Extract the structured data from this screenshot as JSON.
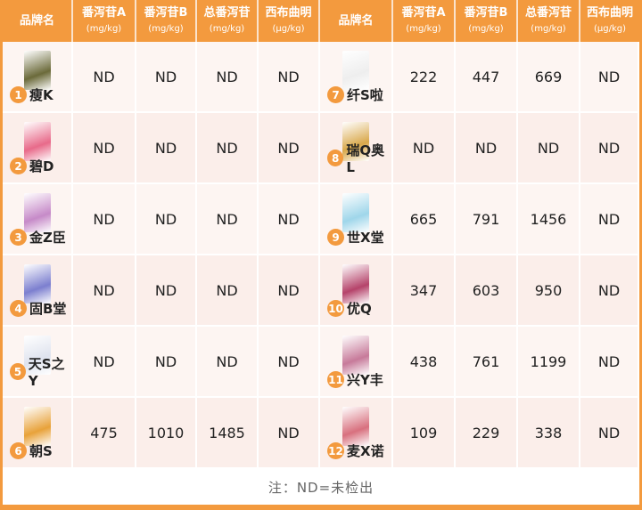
{
  "header": {
    "brand": "品牌名",
    "cols": [
      {
        "name": "番泻苷A",
        "unit": "(mg/kg)"
      },
      {
        "name": "番泻苷B",
        "unit": "(mg/kg)"
      },
      {
        "name": "总番泻苷",
        "unit": "(mg/kg)"
      },
      {
        "name": "西布曲明",
        "unit": "(μg/kg)"
      }
    ]
  },
  "rows": [
    {
      "left": {
        "no": "1",
        "name": "瘦K",
        "v": [
          "ND",
          "ND",
          "ND",
          "ND"
        ],
        "color": "#6b6a3a"
      },
      "right": {
        "no": "7",
        "name": "纤S啦",
        "v": [
          "222",
          "447",
          "669",
          "ND"
        ],
        "color": "#eeeeee"
      }
    },
    {
      "left": {
        "no": "2",
        "name": "碧D",
        "v": [
          "ND",
          "ND",
          "ND",
          "ND"
        ],
        "color": "#e86a8a"
      },
      "right": {
        "no": "8",
        "name": "瑞Q奥L",
        "v": [
          "ND",
          "ND",
          "ND",
          "ND"
        ],
        "color": "#d9a84a"
      }
    },
    {
      "left": {
        "no": "3",
        "name": "金Z臣",
        "v": [
          "ND",
          "ND",
          "ND",
          "ND"
        ],
        "color": "#c68ac8"
      },
      "right": {
        "no": "9",
        "name": "世X堂",
        "v": [
          "665",
          "791",
          "1456",
          "ND"
        ],
        "color": "#9fd6ea"
      }
    },
    {
      "left": {
        "no": "4",
        "name": "固B堂",
        "v": [
          "ND",
          "ND",
          "ND",
          "ND"
        ],
        "color": "#7c7fcf"
      },
      "right": {
        "no": "10",
        "name": "优Q",
        "v": [
          "347",
          "603",
          "950",
          "ND"
        ],
        "color": "#b5436a"
      }
    },
    {
      "left": {
        "no": "5",
        "name": "天S之Y",
        "v": [
          "ND",
          "ND",
          "ND",
          "ND"
        ],
        "color": "#dfe3ee"
      },
      "right": {
        "no": "11",
        "name": "兴Y丰",
        "v": [
          "438",
          "761",
          "1199",
          "ND"
        ],
        "color": "#c77a9a"
      }
    },
    {
      "left": {
        "no": "6",
        "name": "朝S",
        "v": [
          "475",
          "1010",
          "1485",
          "ND"
        ],
        "color": "#e8a23a"
      },
      "right": {
        "no": "12",
        "name": "麦X诺",
        "v": [
          "109",
          "229",
          "338",
          "ND"
        ],
        "color": "#d8707e"
      }
    }
  ],
  "footer": "注：ND=未检出"
}
